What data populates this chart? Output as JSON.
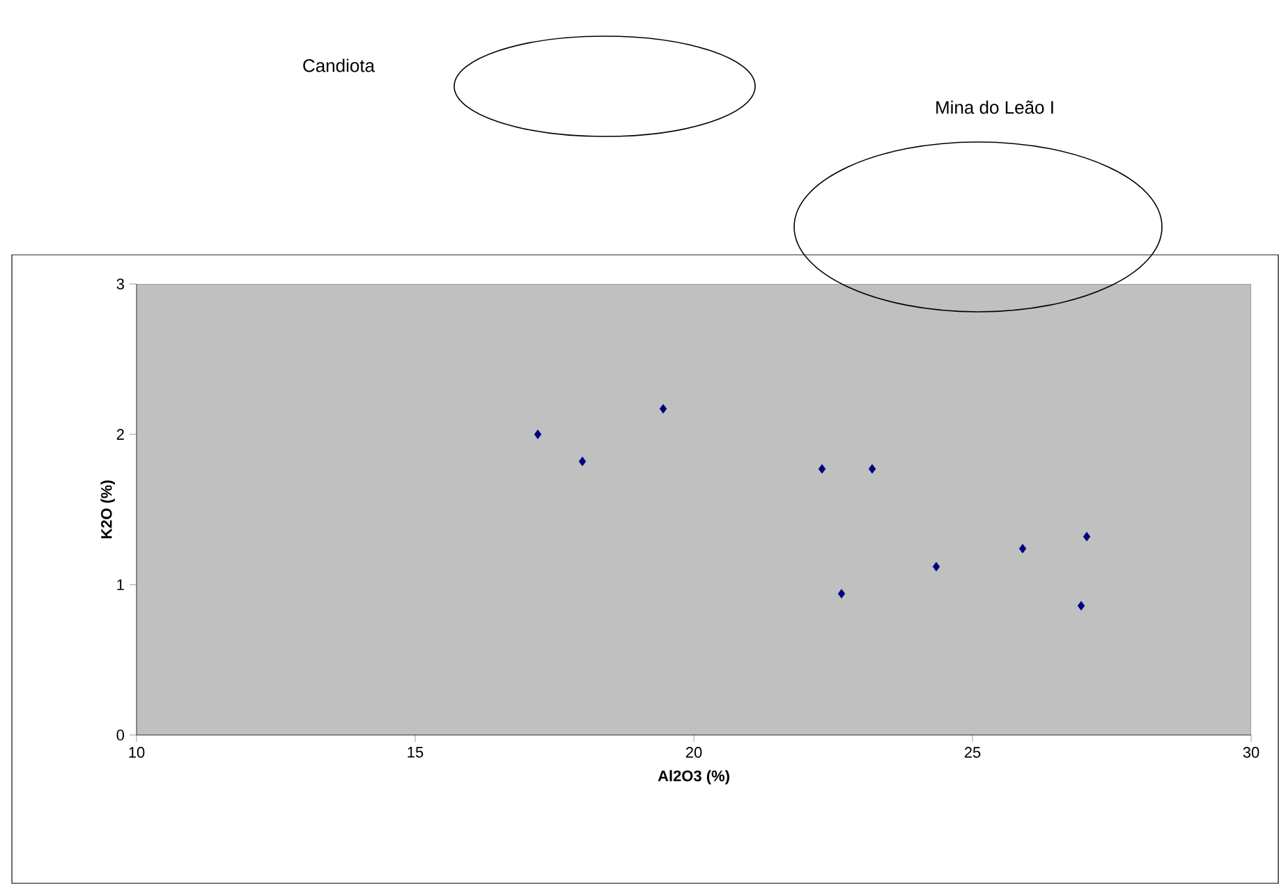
{
  "chart_data": {
    "type": "scatter",
    "xlabel": "Al2O3 (%)",
    "ylabel": "K2O (%)",
    "x": [
      17.2,
      18.0,
      19.45,
      22.3,
      23.2,
      22.65,
      24.35,
      25.9,
      27.05,
      26.95
    ],
    "values": [
      2.0,
      1.82,
      2.17,
      1.77,
      1.77,
      0.94,
      1.12,
      1.24,
      1.32,
      0.86
    ],
    "color": "#000080",
    "marker": "diamond",
    "xlim": [
      10,
      30
    ],
    "ylim": [
      0,
      3
    ],
    "xticks": [
      10,
      15,
      20,
      25,
      30
    ],
    "yticks": [
      0,
      1,
      2,
      3
    ],
    "annotations": [
      "Candiota",
      "Mina do Leão I"
    ]
  }
}
